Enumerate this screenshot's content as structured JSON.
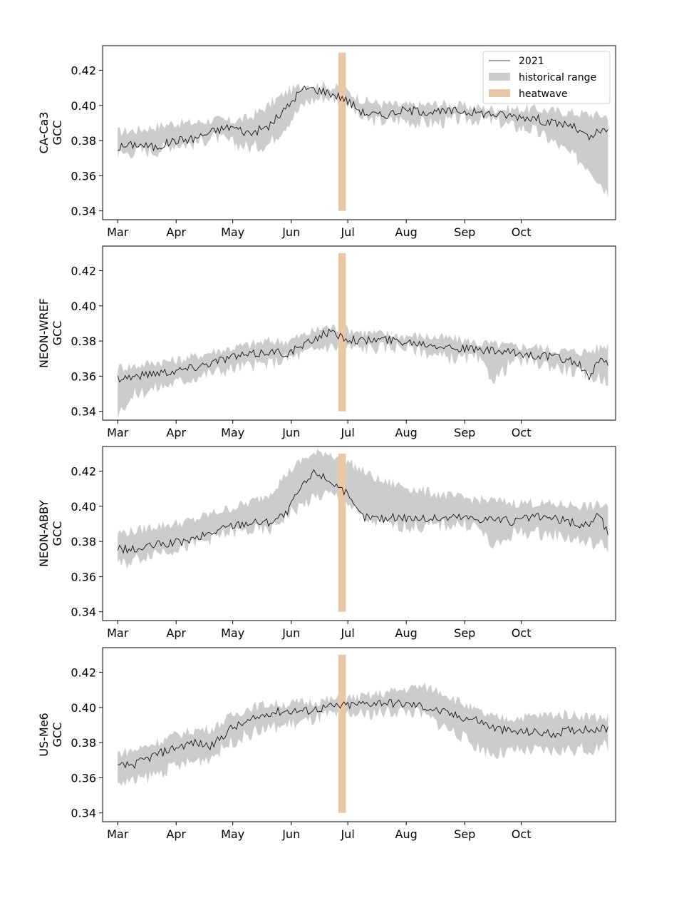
{
  "chart_data": [
    {
      "type": "line",
      "site": "CA-Ca3",
      "ylabel": "GCC",
      "x_ticks": [
        "Mar",
        "Apr",
        "May",
        "Jun",
        "Jul",
        "Aug",
        "Sep",
        "Oct"
      ],
      "y_ticks": [
        "0.34",
        "0.36",
        "0.38",
        "0.40",
        "0.42"
      ],
      "ylim": [
        0.335,
        0.434
      ],
      "xlim_doy": [
        52,
        324
      ],
      "legend": {
        "placement": "top-right",
        "entries": [
          "2021",
          "historical range",
          "heatwave"
        ]
      },
      "heatwave_doy": [
        177,
        181
      ],
      "heatwave_y": [
        0.34,
        0.43
      ],
      "series": [
        {
          "name": "2021",
          "doy": [
            60,
            70,
            80,
            90,
            100,
            110,
            120,
            130,
            140,
            150,
            155,
            160,
            165,
            170,
            175,
            180,
            185,
            190,
            200,
            210,
            220,
            230,
            240,
            250,
            260,
            270,
            280,
            290,
            300,
            305,
            310,
            315,
            320
          ],
          "values": [
            0.376,
            0.378,
            0.376,
            0.38,
            0.381,
            0.385,
            0.388,
            0.384,
            0.388,
            0.399,
            0.406,
            0.41,
            0.409,
            0.408,
            0.406,
            0.404,
            0.4,
            0.396,
            0.394,
            0.397,
            0.397,
            0.396,
            0.397,
            0.396,
            0.395,
            0.394,
            0.393,
            0.39,
            0.389,
            0.385,
            0.381,
            0.385,
            0.385
          ]
        },
        {
          "name": "historical range",
          "doy": [
            60,
            70,
            80,
            90,
            100,
            110,
            120,
            130,
            140,
            150,
            160,
            170,
            180,
            190,
            200,
            210,
            220,
            230,
            240,
            250,
            260,
            270,
            280,
            290,
            300,
            310,
            320
          ],
          "low": [
            0.372,
            0.374,
            0.374,
            0.378,
            0.378,
            0.382,
            0.379,
            0.376,
            0.378,
            0.39,
            0.402,
            0.405,
            0.403,
            0.392,
            0.391,
            0.392,
            0.39,
            0.39,
            0.392,
            0.392,
            0.391,
            0.388,
            0.386,
            0.38,
            0.372,
            0.365,
            0.35
          ],
          "high": [
            0.385,
            0.386,
            0.388,
            0.39,
            0.39,
            0.392,
            0.391,
            0.393,
            0.4,
            0.408,
            0.412,
            0.411,
            0.409,
            0.403,
            0.401,
            0.4,
            0.4,
            0.401,
            0.4,
            0.399,
            0.398,
            0.398,
            0.398,
            0.397,
            0.396,
            0.395,
            0.394
          ]
        }
      ]
    },
    {
      "type": "line",
      "site": "NEON-WREF",
      "ylabel": "GCC",
      "x_ticks": [
        "Mar",
        "Apr",
        "May",
        "Jun",
        "Jul",
        "Aug",
        "Sep",
        "Oct"
      ],
      "y_ticks": [
        "0.34",
        "0.36",
        "0.38",
        "0.40",
        "0.42"
      ],
      "ylim": [
        0.335,
        0.434
      ],
      "xlim_doy": [
        52,
        324
      ],
      "heatwave_doy": [
        177,
        181
      ],
      "heatwave_y": [
        0.34,
        0.43
      ],
      "series": [
        {
          "name": "2021",
          "doy": [
            60,
            70,
            80,
            90,
            100,
            110,
            120,
            130,
            140,
            150,
            160,
            170,
            175,
            180,
            190,
            200,
            210,
            220,
            230,
            240,
            250,
            260,
            270,
            280,
            290,
            300,
            305,
            310,
            315,
            320
          ],
          "values": [
            0.359,
            0.36,
            0.362,
            0.363,
            0.365,
            0.368,
            0.371,
            0.372,
            0.374,
            0.373,
            0.378,
            0.385,
            0.384,
            0.382,
            0.38,
            0.381,
            0.38,
            0.379,
            0.378,
            0.376,
            0.375,
            0.374,
            0.373,
            0.372,
            0.371,
            0.369,
            0.366,
            0.359,
            0.368,
            0.368
          ]
        },
        {
          "name": "historical range",
          "doy": [
            60,
            70,
            80,
            90,
            100,
            110,
            120,
            130,
            140,
            150,
            160,
            170,
            180,
            190,
            200,
            210,
            220,
            230,
            240,
            250,
            260,
            270,
            280,
            290,
            300,
            310,
            320
          ],
          "low": [
            0.34,
            0.35,
            0.353,
            0.356,
            0.359,
            0.362,
            0.364,
            0.366,
            0.367,
            0.37,
            0.373,
            0.377,
            0.376,
            0.376,
            0.376,
            0.377,
            0.375,
            0.371,
            0.37,
            0.37,
            0.358,
            0.369,
            0.368,
            0.366,
            0.363,
            0.36,
            0.358
          ],
          "high": [
            0.365,
            0.366,
            0.368,
            0.369,
            0.371,
            0.374,
            0.376,
            0.378,
            0.38,
            0.38,
            0.384,
            0.388,
            0.387,
            0.385,
            0.384,
            0.383,
            0.383,
            0.382,
            0.381,
            0.379,
            0.378,
            0.377,
            0.377,
            0.375,
            0.374,
            0.374,
            0.378
          ]
        }
      ]
    },
    {
      "type": "line",
      "site": "NEON-ABBY",
      "ylabel": "GCC",
      "x_ticks": [
        "Mar",
        "Apr",
        "May",
        "Jun",
        "Jul",
        "Aug",
        "Sep",
        "Oct"
      ],
      "y_ticks": [
        "0.34",
        "0.36",
        "0.38",
        "0.40",
        "0.42"
      ],
      "ylim": [
        0.335,
        0.434
      ],
      "xlim_doy": [
        52,
        324
      ],
      "heatwave_doy": [
        177,
        181
      ],
      "heatwave_y": [
        0.34,
        0.43
      ],
      "series": [
        {
          "name": "2021",
          "doy": [
            60,
            70,
            80,
            90,
            100,
            110,
            120,
            130,
            140,
            150,
            155,
            160,
            165,
            170,
            175,
            180,
            185,
            190,
            200,
            210,
            220,
            230,
            240,
            250,
            260,
            270,
            280,
            290,
            300,
            305,
            310,
            315,
            320
          ],
          "values": [
            0.376,
            0.375,
            0.378,
            0.379,
            0.381,
            0.385,
            0.389,
            0.391,
            0.391,
            0.396,
            0.407,
            0.414,
            0.42,
            0.416,
            0.413,
            0.409,
            0.4,
            0.394,
            0.393,
            0.394,
            0.393,
            0.393,
            0.394,
            0.393,
            0.393,
            0.391,
            0.394,
            0.393,
            0.391,
            0.389,
            0.39,
            0.396,
            0.384
          ]
        },
        {
          "name": "historical range",
          "doy": [
            60,
            70,
            80,
            90,
            100,
            110,
            120,
            130,
            140,
            150,
            160,
            170,
            180,
            190,
            200,
            210,
            220,
            230,
            240,
            250,
            260,
            270,
            280,
            290,
            300,
            310,
            320
          ],
          "low": [
            0.366,
            0.37,
            0.374,
            0.376,
            0.378,
            0.382,
            0.385,
            0.386,
            0.386,
            0.395,
            0.402,
            0.407,
            0.404,
            0.393,
            0.39,
            0.389,
            0.388,
            0.389,
            0.39,
            0.389,
            0.376,
            0.385,
            0.385,
            0.384,
            0.382,
            0.379,
            0.377
          ],
          "high": [
            0.385,
            0.386,
            0.389,
            0.39,
            0.392,
            0.396,
            0.399,
            0.402,
            0.407,
            0.419,
            0.428,
            0.431,
            0.427,
            0.42,
            0.414,
            0.412,
            0.409,
            0.407,
            0.405,
            0.404,
            0.403,
            0.402,
            0.402,
            0.401,
            0.401,
            0.4,
            0.401
          ]
        }
      ]
    },
    {
      "type": "line",
      "site": "US-Me6",
      "ylabel": "GCC",
      "x_ticks": [
        "Mar",
        "Apr",
        "May",
        "Jun",
        "Jul",
        "Aug",
        "Sep",
        "Oct"
      ],
      "y_ticks": [
        "0.34",
        "0.36",
        "0.38",
        "0.40",
        "0.42"
      ],
      "ylim": [
        0.335,
        0.434
      ],
      "xlim_doy": [
        52,
        324
      ],
      "heatwave_doy": [
        177,
        181
      ],
      "heatwave_y": [
        0.34,
        0.43
      ],
      "series": [
        {
          "name": "2021",
          "doy": [
            60,
            70,
            80,
            90,
            100,
            110,
            120,
            130,
            140,
            150,
            160,
            170,
            180,
            190,
            200,
            210,
            220,
            230,
            240,
            250,
            260,
            270,
            280,
            290,
            300,
            310,
            320
          ],
          "values": [
            0.366,
            0.368,
            0.373,
            0.377,
            0.38,
            0.378,
            0.388,
            0.392,
            0.397,
            0.398,
            0.398,
            0.4,
            0.401,
            0.402,
            0.403,
            0.402,
            0.401,
            0.398,
            0.395,
            0.393,
            0.388,
            0.386,
            0.386,
            0.385,
            0.387,
            0.388,
            0.388
          ]
        },
        {
          "name": "historical range",
          "doy": [
            60,
            70,
            80,
            90,
            100,
            110,
            120,
            130,
            140,
            150,
            160,
            170,
            180,
            190,
            200,
            210,
            220,
            230,
            240,
            250,
            260,
            270,
            280,
            290,
            300,
            310,
            320
          ],
          "low": [
            0.357,
            0.358,
            0.362,
            0.366,
            0.369,
            0.372,
            0.38,
            0.385,
            0.388,
            0.39,
            0.392,
            0.395,
            0.396,
            0.396,
            0.397,
            0.398,
            0.397,
            0.391,
            0.385,
            0.378,
            0.373,
            0.375,
            0.375,
            0.375,
            0.376,
            0.376,
            0.378
          ],
          "high": [
            0.374,
            0.376,
            0.38,
            0.384,
            0.387,
            0.388,
            0.395,
            0.4,
            0.402,
            0.402,
            0.403,
            0.404,
            0.405,
            0.406,
            0.408,
            0.41,
            0.412,
            0.41,
            0.404,
            0.398,
            0.394,
            0.394,
            0.395,
            0.396,
            0.396,
            0.395,
            0.394
          ]
        }
      ]
    }
  ],
  "colors": {
    "line": "#000000",
    "range": "#cccccc",
    "heatwave": "#e8c8a8",
    "axes": "#000000"
  }
}
